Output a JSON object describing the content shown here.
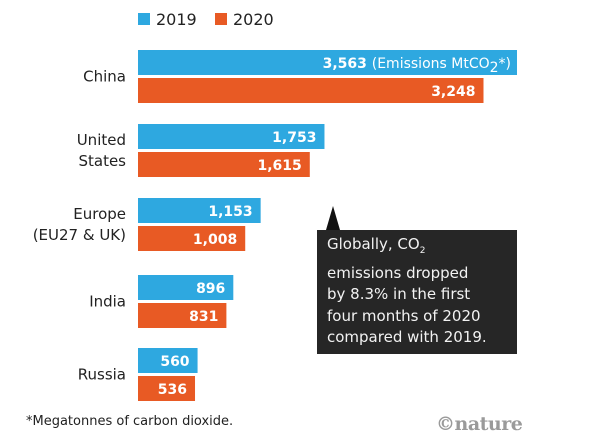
{
  "chart_data": {
    "type": "bar",
    "orientation": "horizontal",
    "title": "",
    "xlabel": "",
    "ylabel": "",
    "categories": [
      "China",
      "United States",
      "Europe (EU27 & UK)",
      "India",
      "Russia"
    ],
    "category_lines": [
      [
        "China"
      ],
      [
        "United",
        "States"
      ],
      [
        "Europe",
        "(EU27 & UK)"
      ],
      [
        "India"
      ],
      [
        "Russia"
      ]
    ],
    "series": [
      {
        "name": "2019",
        "color": "#2ea8e0",
        "values": [
          3563,
          1753,
          1153,
          896,
          560
        ],
        "labels": [
          "3,563",
          "1,753",
          "1,153",
          "896",
          "560"
        ]
      },
      {
        "name": "2020",
        "color": "#e85a24",
        "values": [
          3248,
          1615,
          1008,
          831,
          536
        ],
        "labels": [
          "3,248",
          "1,615",
          "1,008",
          "831",
          "536"
        ]
      }
    ],
    "unit_annotation": "(Emissions MtCO",
    "unit_sub": "2",
    "unit_tail": "*)",
    "legend": {
      "placement": "top-left",
      "entries": [
        "2019",
        "2020"
      ]
    },
    "grid": false,
    "xlim": [
      0,
      4200
    ]
  },
  "callout": {
    "line1_pre": "Globally, CO",
    "line1_sub": "2",
    "lines": [
      "emissions dropped",
      "by 8.3% in the first",
      "four months of 2020",
      "compared with 2019."
    ]
  },
  "footnote": "*Megatonnes of carbon dioxide.",
  "credit": "©nature"
}
